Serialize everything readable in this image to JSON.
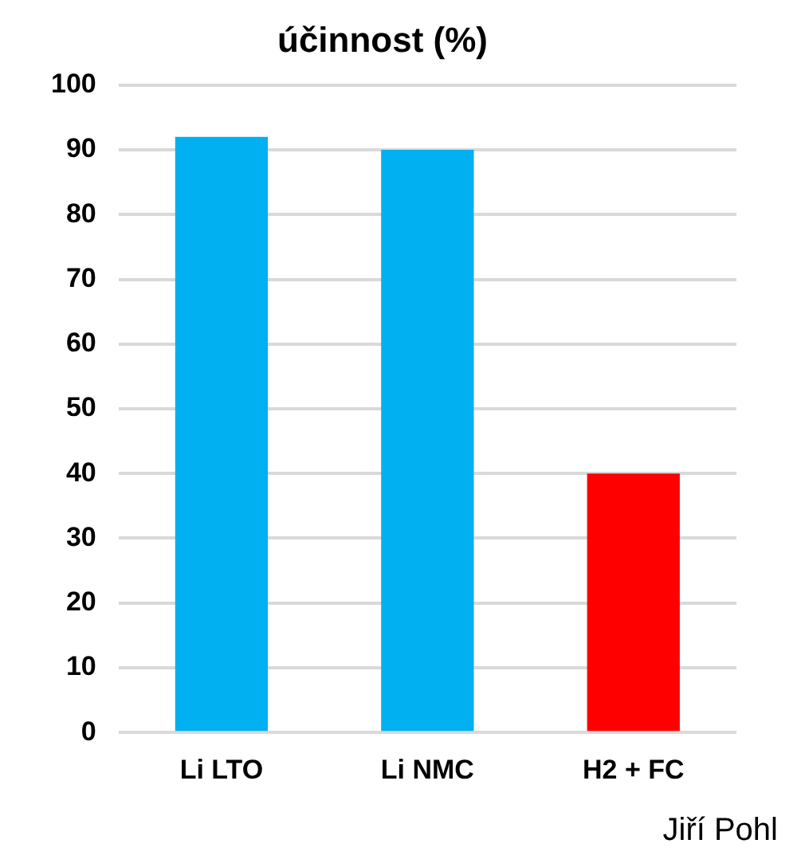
{
  "chart_data": {
    "type": "bar",
    "title": "účinnost (%)",
    "categories": [
      "Li LTO",
      "Li NMC",
      "H2 + FC"
    ],
    "values": [
      92,
      90,
      40
    ],
    "colors": [
      "#00b0f0",
      "#00b0f0",
      "#ff0000"
    ],
    "ylim": [
      0,
      100
    ],
    "yticks": [
      0,
      10,
      20,
      30,
      40,
      50,
      60,
      70,
      80,
      90,
      100
    ],
    "grid": "y",
    "annotations": [
      "Jiří Pohl"
    ]
  }
}
